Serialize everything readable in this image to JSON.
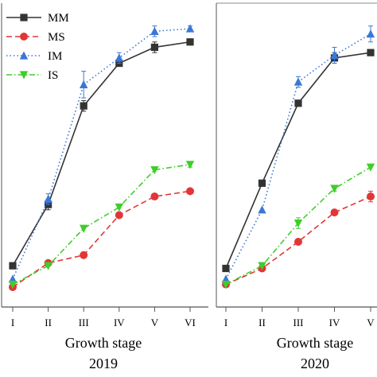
{
  "chart_data": [
    {
      "type": "line",
      "title": "",
      "xlabel": "Growth stage",
      "year_label": "2019",
      "categories": [
        "I",
        "II",
        "III",
        "IV",
        "V",
        "VI"
      ],
      "series": [
        {
          "name": "MM",
          "color": "#333333",
          "marker": "square",
          "dash": "solid",
          "values": [
            0.11,
            0.34,
            0.71,
            0.87,
            0.93,
            0.95
          ],
          "err": [
            0.0,
            0.02,
            0.02,
            0.01,
            0.02,
            0.01
          ]
        },
        {
          "name": "MS",
          "color": "#e23636",
          "marker": "circle",
          "dash": "dash",
          "values": [
            0.03,
            0.12,
            0.15,
            0.3,
            0.37,
            0.39
          ],
          "err": [
            0.0,
            0.0,
            0.01,
            0.01,
            0.01,
            0.01
          ]
        },
        {
          "name": "IM",
          "color": "#3a78d6",
          "marker": "triangle-up",
          "dash": "dot",
          "values": [
            0.06,
            0.36,
            0.79,
            0.89,
            0.99,
            1.0
          ],
          "err": [
            0.0,
            0.02,
            0.05,
            0.02,
            0.02,
            0.01
          ]
        },
        {
          "name": "IS",
          "color": "#3fcd2b",
          "marker": "triangle-down",
          "dash": "dashdot",
          "values": [
            0.04,
            0.11,
            0.25,
            0.33,
            0.47,
            0.49
          ],
          "err": [
            0.0,
            0.0,
            0.0,
            0.0,
            0.0,
            0.01
          ]
        }
      ]
    },
    {
      "type": "line",
      "title": "",
      "xlabel": "Growth stage",
      "year_label": "2020",
      "categories": [
        "I",
        "II",
        "III",
        "IV",
        "V"
      ],
      "series": [
        {
          "name": "MM",
          "color": "#333333",
          "marker": "square",
          "dash": "solid",
          "values": [
            0.1,
            0.42,
            0.72,
            0.89,
            0.91
          ],
          "err": [
            0.0,
            0.0,
            0.0,
            0.02,
            0.01
          ]
        },
        {
          "name": "MS",
          "color": "#e23636",
          "marker": "circle",
          "dash": "dash",
          "values": [
            0.04,
            0.1,
            0.2,
            0.31,
            0.37
          ],
          "err": [
            0.0,
            0.0,
            0.0,
            0.01,
            0.02
          ]
        },
        {
          "name": "IM",
          "color": "#3a78d6",
          "marker": "triangle-up",
          "dash": "dot",
          "values": [
            0.06,
            0.32,
            0.8,
            0.9,
            0.98
          ],
          "err": [
            0.0,
            0.0,
            0.02,
            0.03,
            0.03
          ]
        },
        {
          "name": "IS",
          "color": "#3fcd2b",
          "marker": "triangle-down",
          "dash": "dashdot",
          "values": [
            0.04,
            0.11,
            0.27,
            0.4,
            0.48
          ],
          "err": [
            0.0,
            0.0,
            0.02,
            0.01,
            0.0
          ]
        }
      ]
    }
  ]
}
